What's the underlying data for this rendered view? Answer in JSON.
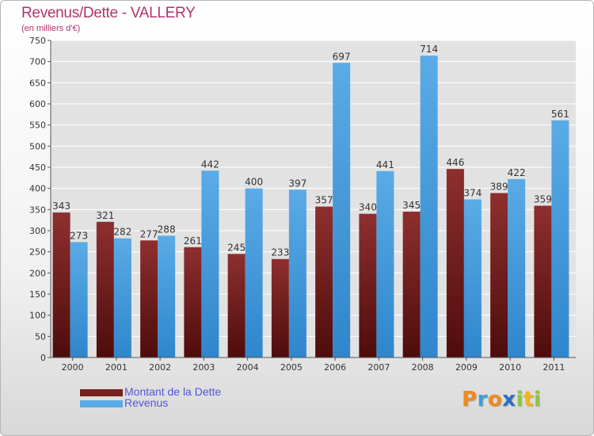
{
  "title": "Revenus/Dette - VALLERY",
  "subtitle": "(en milliers d'€)",
  "logo": {
    "letters": [
      {
        "ch": "P",
        "color": "#f08a1c"
      },
      {
        "ch": "r",
        "color": "#3aa0d8"
      },
      {
        "ch": "o",
        "color": "#f08a1c"
      },
      {
        "ch": "x",
        "color": "#2a6fc0"
      },
      {
        "ch": "i",
        "color": "#8cc63f"
      },
      {
        "ch": "t",
        "color": "#f0b41c"
      },
      {
        "ch": "i",
        "color": "#8cc63f"
      }
    ]
  },
  "colors": {
    "debt": "#7a1f1f",
    "debt_light": "#8e2f2f",
    "debt_dark": "#4e0c0c",
    "revenue": "#5aabe6",
    "revenue_dark": "#2f86cc",
    "label": "#333333",
    "legend_text": "#5555dd",
    "grid": "#ffffff",
    "plot_bg": "#e2e2e2"
  },
  "chart_data": {
    "type": "bar",
    "title": "Revenus/Dette - VALLERY",
    "subtitle": "(en milliers d'€)",
    "categories": [
      "2000",
      "2001",
      "2002",
      "2003",
      "2004",
      "2005",
      "2006",
      "2007",
      "2008",
      "2009",
      "2010",
      "2011"
    ],
    "series": [
      {
        "name": "Montant de la Dette",
        "values": [
          343,
          321,
          277,
          261,
          245,
          233,
          357,
          340,
          345,
          446,
          389,
          359
        ]
      },
      {
        "name": "Revenus",
        "values": [
          273,
          282,
          288,
          442,
          400,
          397,
          697,
          441,
          714,
          374,
          422,
          561
        ]
      }
    ],
    "ylim": [
      0,
      750
    ],
    "yticks": [
      0,
      50,
      100,
      150,
      200,
      250,
      300,
      350,
      400,
      450,
      500,
      550,
      600,
      650,
      700,
      750
    ],
    "grid": true,
    "legend_position": "bottom-left"
  }
}
